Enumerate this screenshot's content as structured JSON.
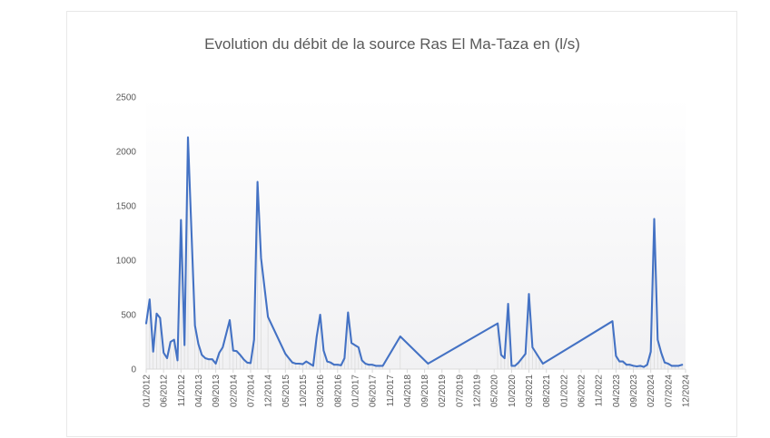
{
  "chart_data": {
    "type": "line",
    "title": "Evolution du débit de la source Ras El Ma-Taza en (l/s)",
    "xlabel": "",
    "ylabel": "",
    "ylim": [
      0,
      2500
    ],
    "yticks": [
      "0",
      "500",
      "1000",
      "1500",
      "2000",
      "2500"
    ],
    "xticks": [
      "01/2012",
      "06/2012",
      "11/2012",
      "04/2013",
      "09/2013",
      "02/2014",
      "07/2014",
      "12/2014",
      "05/2015",
      "10/2015",
      "03/2016",
      "08/2016",
      "01/2017",
      "06/2017",
      "11/2017",
      "04/2018",
      "09/2018",
      "02/2019",
      "07/2019",
      "12/2019",
      "05/2020",
      "10/2020",
      "03/2021",
      "08/2021",
      "01/2022",
      "06/2022",
      "11/2022",
      "04/2023",
      "09/2023",
      "02/2024",
      "07/2024",
      "12/2024"
    ],
    "grid": false,
    "legend": "none",
    "series": [
      {
        "color": "#4472c4",
        "x": [
          "01/2012",
          "02/2012",
          "03/2012",
          "04/2012",
          "05/2012",
          "06/2012",
          "07/2012",
          "08/2012",
          "09/2012",
          "10/2012",
          "11/2012",
          "12/2012",
          "01/2013",
          "03/2013",
          "04/2013",
          "05/2013",
          "06/2013",
          "07/2013",
          "08/2013",
          "09/2013",
          "10/2013",
          "11/2013",
          "01/2014",
          "02/2014",
          "03/2014",
          "04/2014",
          "05/2014",
          "06/2014",
          "07/2014",
          "08/2014",
          "09/2014",
          "10/2014",
          "12/2014",
          "05/2015",
          "06/2015",
          "07/2015",
          "08/2015",
          "09/2015",
          "10/2015",
          "11/2015",
          "12/2015",
          "01/2016",
          "02/2016",
          "03/2016",
          "04/2016",
          "05/2016",
          "06/2016",
          "07/2016",
          "08/2016",
          "09/2016",
          "10/2016",
          "11/2016",
          "12/2016",
          "01/2017",
          "02/2017",
          "03/2017",
          "04/2017",
          "05/2017",
          "06/2017",
          "07/2017",
          "08/2017",
          "09/2017",
          "02/2018",
          "10/2018",
          "06/2020",
          "07/2020",
          "08/2020",
          "09/2020",
          "10/2020",
          "11/2020",
          "12/2020",
          "01/2021",
          "02/2021",
          "03/2021",
          "04/2021",
          "05/2021",
          "06/2021",
          "07/2021",
          "03/2023",
          "04/2023",
          "05/2023",
          "06/2023",
          "07/2023",
          "08/2023",
          "09/2023",
          "10/2023",
          "11/2023",
          "12/2023",
          "01/2024",
          "02/2024",
          "03/2024",
          "04/2024",
          "05/2024",
          "06/2024",
          "07/2024",
          "08/2024",
          "09/2024",
          "10/2024",
          "11/2024"
        ],
        "values": [
          420,
          640,
          160,
          510,
          470,
          150,
          100,
          250,
          270,
          80,
          1370,
          220,
          2130,
          400,
          230,
          130,
          100,
          90,
          90,
          50,
          150,
          200,
          450,
          170,
          165,
          130,
          90,
          60,
          55,
          270,
          1720,
          1020,
          480,
          140,
          100,
          60,
          50,
          50,
          45,
          70,
          50,
          30,
          300,
          500,
          170,
          70,
          60,
          40,
          40,
          35,
          100,
          520,
          240,
          220,
          200,
          80,
          50,
          40,
          40,
          30,
          30,
          30,
          300,
          50,
          420,
          130,
          100,
          600,
          30,
          30,
          60,
          100,
          140,
          690,
          200,
          150,
          100,
          50,
          440,
          120,
          70,
          70,
          40,
          40,
          30,
          25,
          30,
          20,
          40,
          160,
          1380,
          270,
          150,
          60,
          50,
          30,
          30,
          30,
          40
        ]
      }
    ]
  }
}
